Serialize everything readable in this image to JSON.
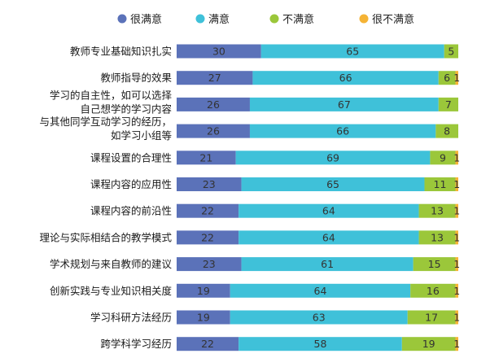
{
  "chart_data": {
    "type": "bar",
    "orientation": "horizontal",
    "stacked": true,
    "percent_scale": true,
    "xlim": [
      0,
      100
    ],
    "legend_position": "top",
    "grid": false,
    "colors": {
      "很满意": "#5b72b9",
      "满意": "#3fc1d9",
      "不满意": "#9bc73a",
      "很不满意": "#f5b335"
    },
    "categories": [
      [
        "教师专业基础知识扎实"
      ],
      [
        "教师指导的效果"
      ],
      [
        "学习的自主性，如可以选择",
        "自己想学的学习内容"
      ],
      [
        "与其他同学互动学习的经历，",
        "如学习小组等"
      ],
      [
        "课程设置的合理性"
      ],
      [
        "课程内容的应用性"
      ],
      [
        "课程内容的前沿性"
      ],
      [
        "理论与实际相结合的教学模式"
      ],
      [
        "学术规划与来自教师的建议"
      ],
      [
        "创新实践与专业知识相关度"
      ],
      [
        "学习科研方法经历"
      ],
      [
        "跨学科学习经历"
      ]
    ],
    "series": [
      {
        "name": "很满意",
        "values": [
          30,
          27,
          26,
          26,
          21,
          23,
          22,
          22,
          23,
          19,
          19,
          22
        ]
      },
      {
        "name": "满意",
        "values": [
          65,
          66,
          67,
          66,
          69,
          65,
          64,
          64,
          61,
          64,
          63,
          58
        ]
      },
      {
        "name": "不满意",
        "values": [
          5,
          6,
          7,
          8,
          9,
          11,
          13,
          13,
          15,
          16,
          17,
          19
        ]
      },
      {
        "name": "很不满意",
        "values": [
          0,
          1,
          0,
          0,
          1,
          1,
          1,
          1,
          1,
          1,
          1,
          1
        ]
      }
    ]
  }
}
